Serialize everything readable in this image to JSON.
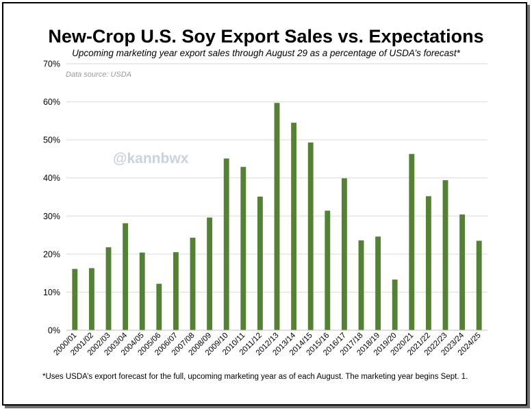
{
  "chart_data": {
    "type": "bar",
    "title": "New-Crop U.S. Soy Export Sales vs. Expectations",
    "subtitle": "Upcoming marketing year export sales through August 29 as a percentage of USDA’s forecast*",
    "source_note": "Data source: USDA",
    "watermark": "@kannbwx",
    "footnote": "*Uses USDA’s export forecast for the full, upcoming marketing year as of each August. The marketing year begins Sept. 1.",
    "xlabel": "",
    "ylabel": "",
    "ylim": [
      0,
      70
    ],
    "yticks": [
      0,
      10,
      20,
      30,
      40,
      50,
      60,
      70
    ],
    "ytick_labels": [
      "0%",
      "10%",
      "20%",
      "30%",
      "40%",
      "50%",
      "60%",
      "70%"
    ],
    "grid": true,
    "bar_color": "#548235",
    "categories": [
      "2000/01",
      "2001/02",
      "2002/03",
      "2003/04",
      "2004/05",
      "2005/06",
      "2006/07",
      "2007/08",
      "2008/09",
      "2009/10",
      "2010/11",
      "2011/12",
      "2012/13",
      "2013/14",
      "2014/15",
      "2015/16",
      "2016/17",
      "2017/18",
      "2018/19",
      "2019/20",
      "2020/21",
      "2021/22",
      "2022/23",
      "2023/24",
      "2024/25"
    ],
    "values": [
      16.1,
      16.3,
      21.8,
      28.1,
      20.4,
      12.2,
      20.5,
      24.3,
      29.6,
      45.1,
      42.9,
      35.1,
      59.7,
      54.5,
      49.3,
      31.4,
      39.9,
      23.6,
      24.6,
      13.3,
      46.3,
      35.2,
      39.4,
      30.4,
      23.5
    ]
  }
}
